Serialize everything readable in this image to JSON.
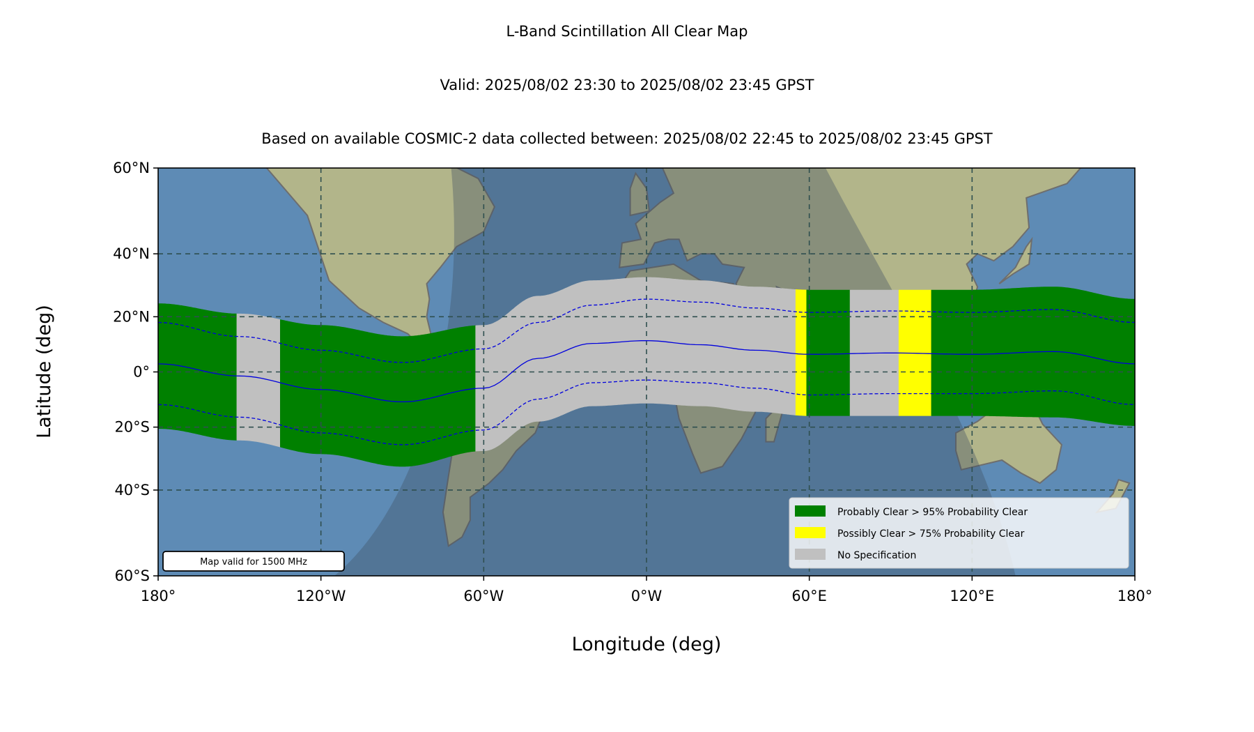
{
  "titles": {
    "line1": "L-Band Scintillation All Clear Map",
    "line2": "Valid: 2025/08/02 23:30 to 2025/08/02 23:45 GPST",
    "line3": "Based on available COSMIC-2 data collected between: 2025/08/02 22:45 to 2025/08/02 23:45 GPST"
  },
  "axes": {
    "xlabel": "Longitude (deg)",
    "ylabel": "Latitude (deg)",
    "xticks": [
      "180°",
      "120°W",
      "60°W",
      "0°W",
      "60°E",
      "120°E",
      "180°"
    ],
    "yticks": [
      "60°N",
      "40°N",
      "20°N",
      "0°",
      "20°S",
      "40°S",
      "60°S"
    ]
  },
  "legend": {
    "items": [
      {
        "label": "Probably Clear > 95% Probability Clear",
        "color": "#008000"
      },
      {
        "label": "Possibly Clear > 75% Probability Clear",
        "color": "#ffff00"
      },
      {
        "label": "No Specification",
        "color": "#c0c0c0"
      }
    ]
  },
  "note": "Map valid for 1500 MHz",
  "colors": {
    "green": "#008000",
    "yellow": "#ffff00",
    "gray": "#c0c0c0",
    "center_line": "#0000dd",
    "grid": "#2f4f4f",
    "ocean": "#5e8bb5",
    "land": "#b2b58a",
    "night": "#3e4e62"
  },
  "chart_data": {
    "type": "map",
    "projection": "mercator",
    "xlim": [
      -180,
      180
    ],
    "ylim": [
      -60,
      60
    ],
    "grid": true,
    "legend_position": "bottom-right",
    "center_line": [
      [
        -180,
        3
      ],
      [
        -150,
        -1.5
      ],
      [
        -120,
        -6.5
      ],
      [
        -90,
        -11
      ],
      [
        -60,
        -6
      ],
      [
        -40,
        5
      ],
      [
        -20,
        10.5
      ],
      [
        0,
        11.5
      ],
      [
        20,
        10
      ],
      [
        40,
        8
      ],
      [
        60,
        6.5
      ],
      [
        90,
        7
      ],
      [
        120,
        6.5
      ],
      [
        150,
        7.5
      ],
      [
        180,
        3
      ]
    ],
    "band_upper": [
      [
        -180,
        24.5
      ],
      [
        -150,
        21
      ],
      [
        -120,
        17
      ],
      [
        -90,
        13
      ],
      [
        -60,
        17
      ],
      [
        -40,
        27
      ],
      [
        -20,
        32
      ],
      [
        0,
        33
      ],
      [
        20,
        32
      ],
      [
        40,
        30
      ],
      [
        60,
        29
      ],
      [
        90,
        29
      ],
      [
        120,
        29
      ],
      [
        150,
        30
      ],
      [
        180,
        26
      ]
    ],
    "band_lower": [
      [
        -180,
        -20.5
      ],
      [
        -150,
        -24.5
      ],
      [
        -120,
        -29
      ],
      [
        -90,
        -33
      ],
      [
        -60,
        -28
      ],
      [
        -40,
        -18
      ],
      [
        -20,
        -12.5
      ],
      [
        0,
        -11.5
      ],
      [
        20,
        -12.5
      ],
      [
        40,
        -14.5
      ],
      [
        60,
        -16
      ],
      [
        90,
        -16
      ],
      [
        120,
        -16
      ],
      [
        150,
        -16.5
      ],
      [
        180,
        -19.5
      ]
    ],
    "dashed_upper": [
      [
        -180,
        18
      ],
      [
        -150,
        13
      ],
      [
        -120,
        8
      ],
      [
        -90,
        3.5
      ],
      [
        -60,
        8.5
      ],
      [
        -40,
        18
      ],
      [
        -20,
        24
      ],
      [
        0,
        26
      ],
      [
        20,
        25
      ],
      [
        40,
        23
      ],
      [
        60,
        21.5
      ],
      [
        90,
        22
      ],
      [
        120,
        21.5
      ],
      [
        150,
        22.5
      ],
      [
        180,
        18
      ]
    ],
    "dashed_lower": [
      [
        -180,
        -12
      ],
      [
        -150,
        -16.5
      ],
      [
        -120,
        -22
      ],
      [
        -90,
        -26
      ],
      [
        -60,
        -21
      ],
      [
        -40,
        -10
      ],
      [
        -20,
        -4
      ],
      [
        0,
        -3
      ],
      [
        20,
        -4
      ],
      [
        40,
        -6
      ],
      [
        60,
        -8.5
      ],
      [
        90,
        -8
      ],
      [
        120,
        -8
      ],
      [
        150,
        -7
      ],
      [
        180,
        -12
      ]
    ],
    "segments": [
      {
        "from": -180,
        "to": -151,
        "category": "Probably Clear"
      },
      {
        "from": -151,
        "to": -135,
        "category": "No Specification"
      },
      {
        "from": -135,
        "to": -63,
        "category": "Probably Clear"
      },
      {
        "from": -63,
        "to": 55,
        "category": "No Specification"
      },
      {
        "from": 55,
        "to": 59,
        "category": "Possibly Clear"
      },
      {
        "from": 59,
        "to": 75,
        "category": "Probably Clear"
      },
      {
        "from": 75,
        "to": 93,
        "category": "No Specification"
      },
      {
        "from": 93,
        "to": 105,
        "category": "Possibly Clear"
      },
      {
        "from": 105,
        "to": 180,
        "category": "Probably Clear"
      }
    ]
  }
}
